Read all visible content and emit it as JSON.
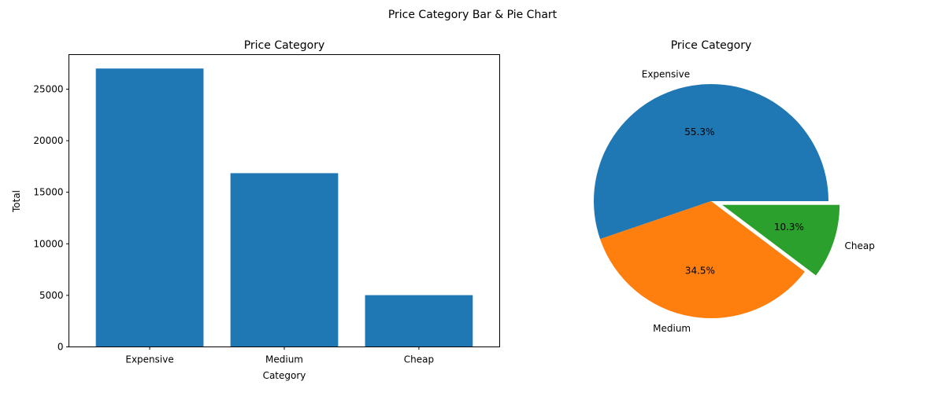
{
  "figure": {
    "suptitle": "Price Category Bar & Pie Chart"
  },
  "chart_data": [
    {
      "type": "bar",
      "title": "Price Category",
      "xlabel": "Category",
      "ylabel": "Total",
      "categories": [
        "Expensive",
        "Medium",
        "Cheap"
      ],
      "values": [
        27000,
        16850,
        5020
      ],
      "ylim": [
        0,
        28350
      ],
      "yticks": [
        0,
        5000,
        10000,
        15000,
        20000,
        25000
      ],
      "color": "#1f77b4",
      "grid": false
    },
    {
      "type": "pie",
      "title": "Price Category",
      "labels": [
        "Expensive",
        "Medium",
        "Cheap"
      ],
      "percentages": [
        "55.3%",
        "34.5%",
        "10.3%"
      ],
      "values": [
        55.3,
        34.5,
        10.3
      ],
      "colors": [
        "#1f77b4",
        "#ff7f0e",
        "#2ca02c"
      ],
      "explode": [
        0,
        0,
        0.1
      ]
    }
  ]
}
